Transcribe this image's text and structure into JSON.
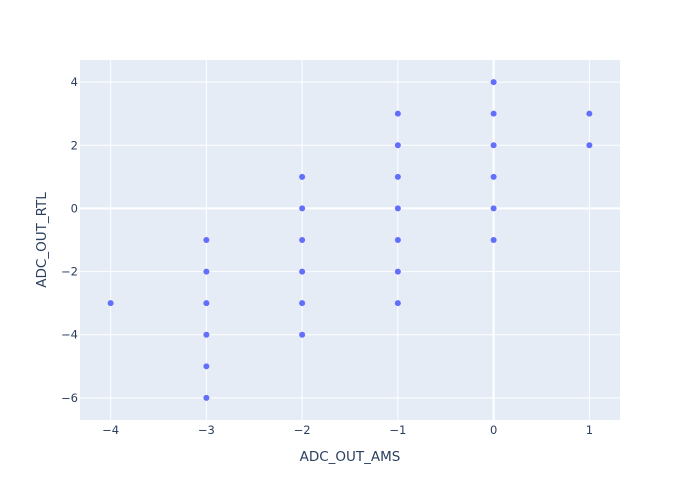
{
  "chart_data": {
    "type": "scatter",
    "xlabel": "ADC_OUT_AMS",
    "ylabel": "ADC_OUT_RTL",
    "xlim": [
      -4.32,
      1.32
    ],
    "ylim": [
      -6.7,
      4.7
    ],
    "xticks": [
      -4,
      -3,
      -2,
      -1,
      0,
      1
    ],
    "xtick_labels": [
      "−4",
      "−3",
      "−2",
      "−1",
      "0",
      "1"
    ],
    "yticks": [
      -6,
      -4,
      -2,
      0,
      2,
      4
    ],
    "ytick_labels": [
      "−6",
      "−4",
      "−2",
      "0",
      "2",
      "4"
    ],
    "grid": true,
    "colors": {
      "background": "#e5ecf6",
      "grid": "#ffffff",
      "marker": "#636efa",
      "text": "#2a3f5f"
    },
    "points": [
      {
        "x": -4,
        "y": -3
      },
      {
        "x": -3,
        "y": -1
      },
      {
        "x": -3,
        "y": -2
      },
      {
        "x": -3,
        "y": -3
      },
      {
        "x": -3,
        "y": -4
      },
      {
        "x": -3,
        "y": -5
      },
      {
        "x": -3,
        "y": -6
      },
      {
        "x": -2,
        "y": 1
      },
      {
        "x": -2,
        "y": 0
      },
      {
        "x": -2,
        "y": -1
      },
      {
        "x": -2,
        "y": -2
      },
      {
        "x": -2,
        "y": -3
      },
      {
        "x": -2,
        "y": -4
      },
      {
        "x": -1,
        "y": 3
      },
      {
        "x": -1,
        "y": 2
      },
      {
        "x": -1,
        "y": 1
      },
      {
        "x": -1,
        "y": 0
      },
      {
        "x": -1,
        "y": -1
      },
      {
        "x": -1,
        "y": -2
      },
      {
        "x": -1,
        "y": -3
      },
      {
        "x": 0,
        "y": 4
      },
      {
        "x": 0,
        "y": 3
      },
      {
        "x": 0,
        "y": 2
      },
      {
        "x": 0,
        "y": 1
      },
      {
        "x": 0,
        "y": 0
      },
      {
        "x": 0,
        "y": -1
      },
      {
        "x": 1,
        "y": 3
      },
      {
        "x": 1,
        "y": 2
      }
    ]
  }
}
